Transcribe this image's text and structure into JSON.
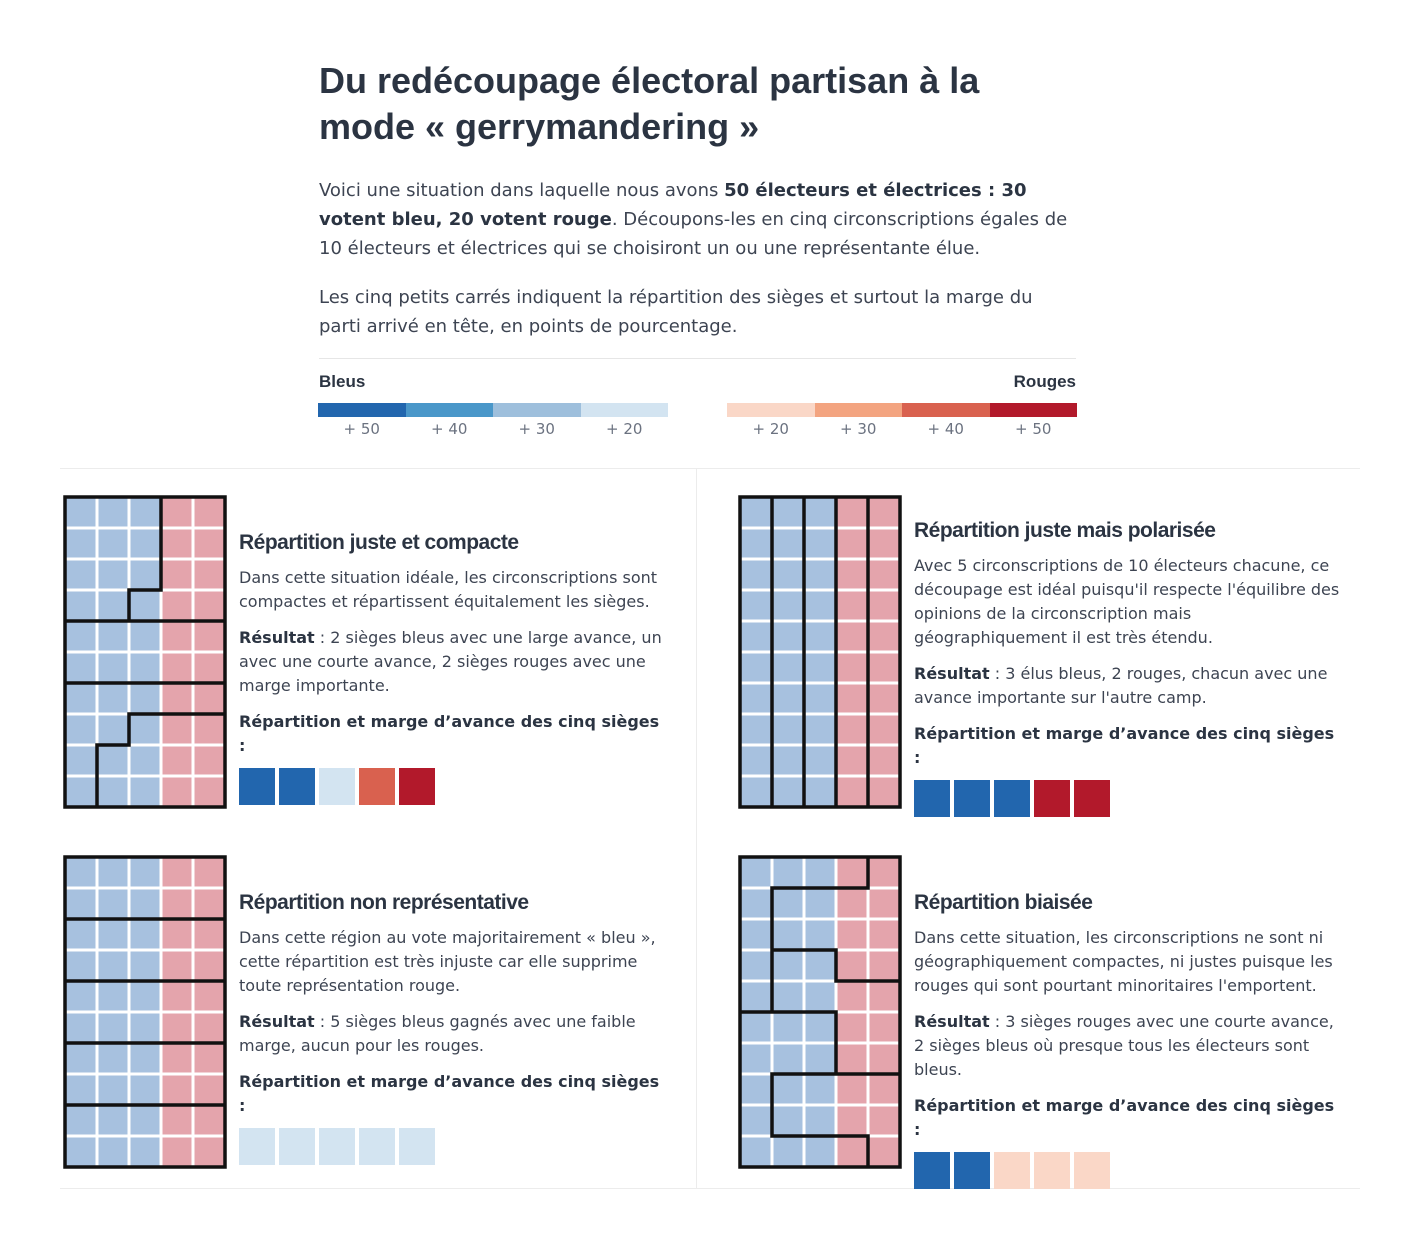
{
  "title": "Du redécoupage électoral partisan à la mode « gerrymandering »",
  "intro": {
    "p1_a": "Voici une situation dans laquelle nous avons ",
    "p1_b": "50 électeurs et électrices : 30 votent bleu, 20 votent rouge",
    "p1_c": ". Découpons-les en cinq circonscriptions égales de 10 électeurs et électrices qui se choisiront un ou une représentante élue.",
    "p2": "Les cinq petits carrés indiquent la répartition des sièges et surtout la marge du parti arrivé en tête, en points de pourcentage."
  },
  "legend": {
    "blue_label": "Bleus",
    "red_label": "Rouges",
    "blue_ticks": [
      "+ 50",
      "+ 40",
      "+ 30",
      "+ 20"
    ],
    "red_ticks": [
      "+ 20",
      "+ 30",
      "+ 40",
      "+ 50"
    ],
    "blue_colors": [
      "#2266ae",
      "#4a97c9",
      "#9ebfdc",
      "#d3e4f1"
    ],
    "red_colors": [
      "#fad7c7",
      "#f3a480",
      "#d9614f",
      "#b2192b"
    ]
  },
  "colors": {
    "voter_blue": "#a7c1df",
    "voter_red": "#e4a4ac",
    "district_border": "#111111",
    "cell_gap": "#ffffff"
  },
  "seat_colors": {
    "b50": "#2266ae",
    "b40": "#4a97c9",
    "b30": "#9ebfdc",
    "b20": "#d3e4f1",
    "r20": "#fad7c7",
    "r30": "#f3a480",
    "r40": "#d9614f",
    "r50": "#b2192b"
  },
  "voter_grid": {
    "columns": 5,
    "rows": 10,
    "column_parties": [
      "blue",
      "blue",
      "blue",
      "red",
      "red"
    ]
  },
  "seats_label": "Répartition et marge d’avance des cinq sièges :",
  "result_label": "Résultat",
  "panels": [
    {
      "id": "compact",
      "title": "Répartition juste et compacte",
      "description": "Dans cette situation idéale, les circonscriptions sont compactes et répartissent équitalement les sièges.",
      "result": " : 2 sièges bleus avec une large avance, un avec une courte avance, 2 sièges rouges avec une marge importante.",
      "seats": [
        "b50",
        "b50",
        "b20",
        "r40",
        "r50"
      ],
      "districts": [
        [
          0,
          0,
          0,
          1,
          1
        ],
        [
          0,
          0,
          0,
          1,
          1
        ],
        [
          0,
          0,
          0,
          1,
          1
        ],
        [
          0,
          0,
          1,
          1,
          1
        ],
        [
          2,
          2,
          2,
          2,
          2
        ],
        [
          2,
          2,
          2,
          2,
          2
        ],
        [
          3,
          3,
          3,
          3,
          3
        ],
        [
          3,
          3,
          4,
          4,
          4
        ],
        [
          3,
          4,
          4,
          4,
          4
        ],
        [
          3,
          4,
          4,
          4,
          4
        ]
      ]
    },
    {
      "id": "polarised",
      "title": "Répartition juste mais polarisée",
      "description": "Avec 5 circonscriptions de 10 électeurs chacune, ce découpage est idéal puisqu'il respecte l'équilibre des opinions de la circonscription mais géographiquement il est très étendu.",
      "result": " : 3 élus bleus, 2 rouges, chacun avec une avance importante sur l'autre camp.",
      "seats": [
        "b50",
        "b50",
        "b50",
        "r50",
        "r50"
      ],
      "districts": [
        [
          0,
          1,
          2,
          3,
          4
        ],
        [
          0,
          1,
          2,
          3,
          4
        ],
        [
          0,
          1,
          2,
          3,
          4
        ],
        [
          0,
          1,
          2,
          3,
          4
        ],
        [
          0,
          1,
          2,
          3,
          4
        ],
        [
          0,
          1,
          2,
          3,
          4
        ],
        [
          0,
          1,
          2,
          3,
          4
        ],
        [
          0,
          1,
          2,
          3,
          4
        ],
        [
          0,
          1,
          2,
          3,
          4
        ],
        [
          0,
          1,
          2,
          3,
          4
        ]
      ]
    },
    {
      "id": "unrepresentative",
      "title": "Répartition non représentative",
      "description": "Dans cette région au vote majoritairement « bleu », cette répartition est très injuste car elle supprime toute représentation rouge.",
      "result": " : 5 sièges bleus gagnés avec une faible marge, aucun pour les rouges.",
      "seats": [
        "b20",
        "b20",
        "b20",
        "b20",
        "b20"
      ],
      "districts": [
        [
          0,
          0,
          0,
          0,
          0
        ],
        [
          0,
          0,
          0,
          0,
          0
        ],
        [
          1,
          1,
          1,
          1,
          1
        ],
        [
          1,
          1,
          1,
          1,
          1
        ],
        [
          2,
          2,
          2,
          2,
          2
        ],
        [
          2,
          2,
          2,
          2,
          2
        ],
        [
          3,
          3,
          3,
          3,
          3
        ],
        [
          3,
          3,
          3,
          3,
          3
        ],
        [
          4,
          4,
          4,
          4,
          4
        ],
        [
          4,
          4,
          4,
          4,
          4
        ]
      ]
    },
    {
      "id": "biased",
      "title": "Répartition biaisée",
      "description": "Dans cette situation, les circonscriptions ne sont ni géographiquement compactes, ni justes puisque les rouges qui sont pourtant minoritaires l'emportent.",
      "result": " : 3 sièges rouges avec une courte avance, 2 sièges bleus où presque tous les électeurs sont bleus.",
      "seats": [
        "b50",
        "b50",
        "r20",
        "r20",
        "r20"
      ],
      "districts": [
        [
          0,
          0,
          0,
          0,
          1
        ],
        [
          0,
          1,
          1,
          1,
          1
        ],
        [
          0,
          1,
          1,
          1,
          1
        ],
        [
          0,
          2,
          2,
          1,
          1
        ],
        [
          0,
          2,
          2,
          2,
          2
        ],
        [
          3,
          3,
          3,
          2,
          2
        ],
        [
          3,
          3,
          3,
          2,
          2
        ],
        [
          3,
          4,
          4,
          4,
          4
        ],
        [
          3,
          4,
          4,
          4,
          4
        ],
        [
          3,
          3,
          3,
          3,
          4
        ]
      ]
    }
  ]
}
